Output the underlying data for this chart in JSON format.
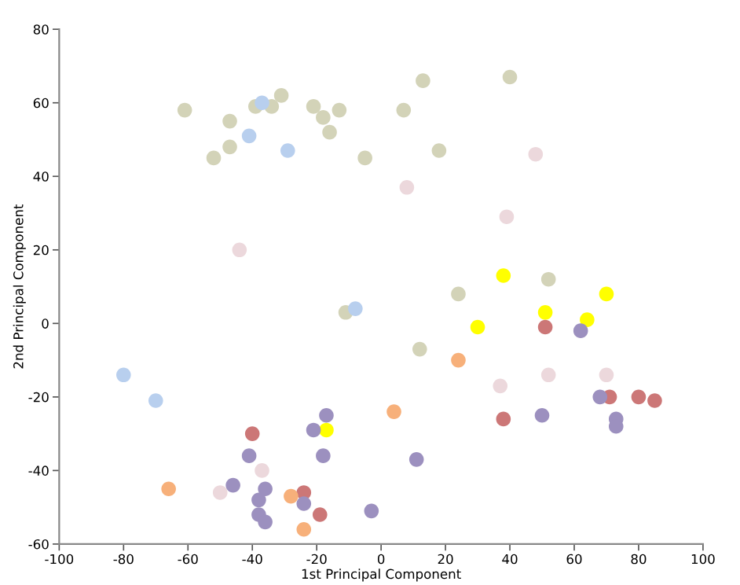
{
  "chart_data": {
    "type": "scatter",
    "xlabel": "1st Principal Component",
    "ylabel": "2nd Principal Component",
    "xlim": [
      -100,
      100
    ],
    "ylim": [
      -60,
      80
    ],
    "xticks": [
      -100,
      -80,
      -60,
      -40,
      -20,
      0,
      20,
      40,
      60,
      80,
      100
    ],
    "yticks": [
      -60,
      -40,
      -20,
      0,
      20,
      40,
      60,
      80
    ],
    "grid": false,
    "marker": "circle",
    "series": [
      {
        "color": "#d3d3b8",
        "x": [
          -61,
          -47,
          -52,
          -47,
          -39,
          -31,
          -34,
          -21,
          -18,
          -16,
          -13,
          -5,
          7,
          13,
          18,
          40,
          24,
          12,
          52,
          -11
        ],
        "values": [
          58,
          55,
          45,
          48,
          59,
          62,
          59,
          59,
          56,
          52,
          58,
          45,
          58,
          66,
          47,
          67,
          8,
          -7,
          12,
          3
        ]
      },
      {
        "color": "#b8cfee",
        "x": [
          -37,
          -41,
          -29,
          -8,
          -80,
          -70
        ],
        "values": [
          60,
          51,
          47,
          4,
          -14,
          -21
        ]
      },
      {
        "color": "#ecd8dc",
        "x": [
          -44,
          8,
          48,
          39,
          37,
          52,
          70,
          -37,
          -50
        ],
        "values": [
          20,
          37,
          46,
          29,
          -17,
          -14,
          -14,
          -40,
          -46
        ]
      },
      {
        "color": "#ffff00",
        "x": [
          38,
          30,
          51,
          64,
          70,
          -17
        ],
        "values": [
          13,
          -1,
          3,
          1,
          8,
          -29
        ]
      },
      {
        "color": "#cc7777",
        "x": [
          51,
          -40,
          38,
          71,
          80,
          85,
          -24,
          -19
        ],
        "values": [
          -1,
          -30,
          -26,
          -20,
          -20,
          -21,
          -46,
          -52
        ]
      },
      {
        "color": "#9c90bf",
        "x": [
          62,
          68,
          50,
          73,
          73,
          11,
          -3,
          -17,
          -21,
          -18,
          -41,
          -46,
          -36,
          -38,
          -38,
          -36,
          -24
        ],
        "values": [
          -2,
          -20,
          -25,
          -26,
          -28,
          -37,
          -51,
          -25,
          -29,
          -36,
          -36,
          -44,
          -45,
          -48,
          -52,
          -54,
          -49
        ]
      },
      {
        "color": "#f7b07a",
        "x": [
          -66,
          4,
          24,
          -28,
          -24
        ],
        "values": [
          -45,
          -24,
          -10,
          -47,
          -56
        ]
      }
    ]
  }
}
